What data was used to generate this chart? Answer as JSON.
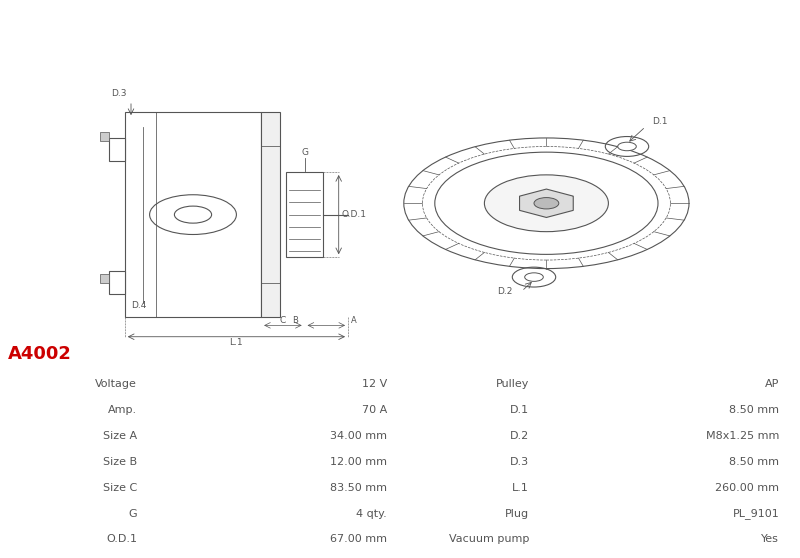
{
  "title": "A4002",
  "title_color": "#cc0000",
  "bg_color": "#ffffff",
  "table_left_headers": [
    "Voltage",
    "Amp.",
    "Size A",
    "Size B",
    "Size C",
    "G",
    "O.D.1"
  ],
  "table_left_values": [
    "12 V",
    "70 A",
    "34.00 mm",
    "12.00 mm",
    "83.50 mm",
    "4 qty.",
    "67.00 mm"
  ],
  "table_right_headers": [
    "Pulley",
    "D.1",
    "D.2",
    "D.3",
    "L.1",
    "Plug",
    "Vacuum pump"
  ],
  "table_right_values": [
    "AP",
    "8.50 mm",
    "M8x1.25 mm",
    "8.50 mm",
    "260.00 mm",
    "PL_9101",
    "Yes"
  ],
  "row_colors": [
    "#e8e8e8",
    "#f5f5f5"
  ],
  "border_color": "#cccccc",
  "text_color": "#555555",
  "header_color": "#888888",
  "font_size": 8
}
